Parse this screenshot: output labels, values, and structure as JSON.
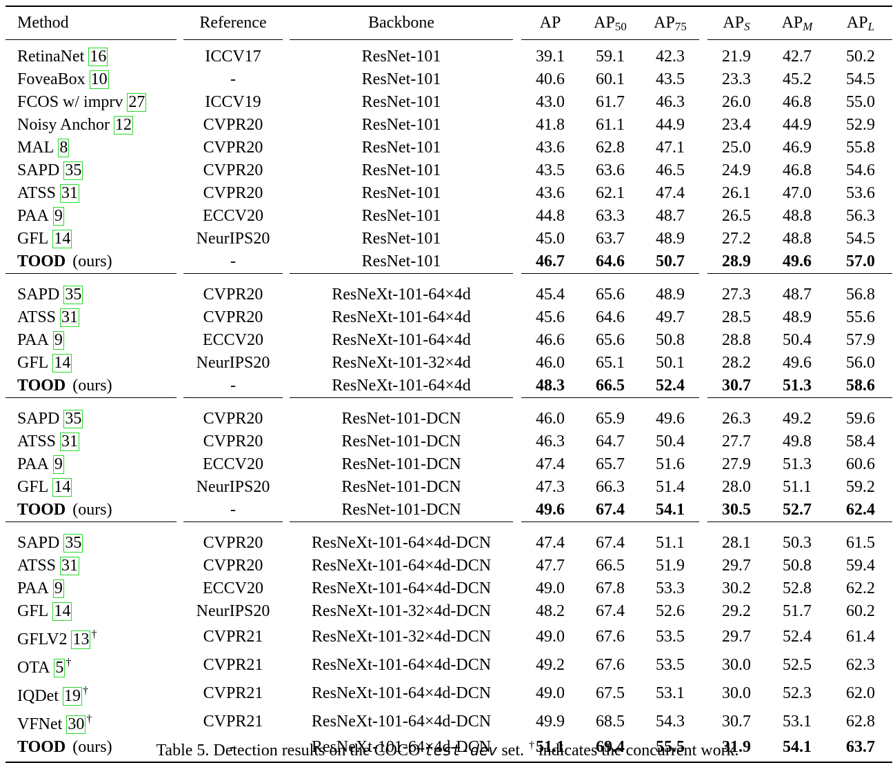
{
  "headers": {
    "method": "Method",
    "reference": "Reference",
    "backbone": "Backbone",
    "ap": "AP",
    "ap50": "50",
    "ap75": "75",
    "aps": "S",
    "apm": "M",
    "apl": "L"
  },
  "ours_label": "(ours)",
  "groups": [
    [
      {
        "method": "RetinaNet",
        "cite": "16",
        "dagger": false,
        "ref": "ICCV17",
        "backbone": "ResNet-101",
        "v": [
          "39.1",
          "59.1",
          "42.3",
          "21.9",
          "42.7",
          "50.2"
        ]
      },
      {
        "method": "FoveaBox",
        "cite": "10",
        "dagger": false,
        "ref": "-",
        "backbone": "ResNet-101",
        "v": [
          "40.6",
          "60.1",
          "43.5",
          "23.3",
          "45.2",
          "54.5"
        ]
      },
      {
        "method": "FCOS w/ imprv",
        "cite": "27",
        "dagger": false,
        "ref": "ICCV19",
        "backbone": "ResNet-101",
        "v": [
          "43.0",
          "61.7",
          "46.3",
          "26.0",
          "46.8",
          "55.0"
        ]
      },
      {
        "method": "Noisy Anchor",
        "cite": "12",
        "dagger": false,
        "ref": "CVPR20",
        "backbone": "ResNet-101",
        "v": [
          "41.8",
          "61.1",
          "44.9",
          "23.4",
          "44.9",
          "52.9"
        ]
      },
      {
        "method": "MAL",
        "cite": "8",
        "dagger": false,
        "ref": "CVPR20",
        "backbone": "ResNet-101",
        "v": [
          "43.6",
          "62.8",
          "47.1",
          "25.0",
          "46.9",
          "55.8"
        ]
      },
      {
        "method": "SAPD",
        "cite": "35",
        "dagger": false,
        "ref": "CVPR20",
        "backbone": "ResNet-101",
        "v": [
          "43.5",
          "63.6",
          "46.5",
          "24.9",
          "46.8",
          "54.6"
        ]
      },
      {
        "method": "ATSS",
        "cite": "31",
        "dagger": false,
        "ref": "CVPR20",
        "backbone": "ResNet-101",
        "v": [
          "43.6",
          "62.1",
          "47.4",
          "26.1",
          "47.0",
          "53.6"
        ]
      },
      {
        "method": "PAA",
        "cite": "9",
        "dagger": false,
        "ref": "ECCV20",
        "backbone": "ResNet-101",
        "v": [
          "44.8",
          "63.3",
          "48.7",
          "26.5",
          "48.8",
          "56.3"
        ]
      },
      {
        "method": "GFL",
        "cite": "14",
        "dagger": false,
        "ref": "NeurIPS20",
        "backbone": "ResNet-101",
        "v": [
          "45.0",
          "63.7",
          "48.9",
          "27.2",
          "48.8",
          "54.5"
        ]
      },
      {
        "method": "TOOD",
        "ours": true,
        "ref": "-",
        "backbone": "ResNet-101",
        "v": [
          "46.7",
          "64.6",
          "50.7",
          "28.9",
          "49.6",
          "57.0"
        ]
      }
    ],
    [
      {
        "method": "SAPD",
        "cite": "35",
        "dagger": false,
        "ref": "CVPR20",
        "backbone": "ResNeXt-101-64×4d",
        "v": [
          "45.4",
          "65.6",
          "48.9",
          "27.3",
          "48.7",
          "56.8"
        ]
      },
      {
        "method": "ATSS",
        "cite": "31",
        "dagger": false,
        "ref": "CVPR20",
        "backbone": "ResNeXt-101-64×4d",
        "v": [
          "45.6",
          "64.6",
          "49.7",
          "28.5",
          "48.9",
          "55.6"
        ]
      },
      {
        "method": "PAA",
        "cite": "9",
        "dagger": false,
        "ref": "ECCV20",
        "backbone": "ResNeXt-101-64×4d",
        "v": [
          "46.6",
          "65.6",
          "50.8",
          "28.8",
          "50.4",
          "57.9"
        ]
      },
      {
        "method": "GFL",
        "cite": "14",
        "dagger": false,
        "ref": "NeurIPS20",
        "backbone": "ResNeXt-101-32×4d",
        "v": [
          "46.0",
          "65.1",
          "50.1",
          "28.2",
          "49.6",
          "56.0"
        ]
      },
      {
        "method": "TOOD",
        "ours": true,
        "ref": "-",
        "backbone": "ResNeXt-101-64×4d",
        "v": [
          "48.3",
          "66.5",
          "52.4",
          "30.7",
          "51.3",
          "58.6"
        ]
      }
    ],
    [
      {
        "method": "SAPD",
        "cite": "35",
        "dagger": false,
        "ref": "CVPR20",
        "backbone": "ResNet-101-DCN",
        "v": [
          "46.0",
          "65.9",
          "49.6",
          "26.3",
          "49.2",
          "59.6"
        ]
      },
      {
        "method": "ATSS",
        "cite": "31",
        "dagger": false,
        "ref": "CVPR20",
        "backbone": "ResNet-101-DCN",
        "v": [
          "46.3",
          "64.7",
          "50.4",
          "27.7",
          "49.8",
          "58.4"
        ]
      },
      {
        "method": "PAA",
        "cite": "9",
        "dagger": false,
        "ref": "ECCV20",
        "backbone": "ResNet-101-DCN",
        "v": [
          "47.4",
          "65.7",
          "51.6",
          "27.9",
          "51.3",
          "60.6"
        ]
      },
      {
        "method": "GFL",
        "cite": "14",
        "dagger": false,
        "ref": "NeurIPS20",
        "backbone": "ResNet-101-DCN",
        "v": [
          "47.3",
          "66.3",
          "51.4",
          "28.0",
          "51.1",
          "59.2"
        ]
      },
      {
        "method": "TOOD",
        "ours": true,
        "ref": "-",
        "backbone": "ResNet-101-DCN",
        "v": [
          "49.6",
          "67.4",
          "54.1",
          "30.5",
          "52.7",
          "62.4"
        ]
      }
    ],
    [
      {
        "method": "SAPD",
        "cite": "35",
        "dagger": false,
        "ref": "CVPR20",
        "backbone": "ResNeXt-101-64×4d-DCN",
        "v": [
          "47.4",
          "67.4",
          "51.1",
          "28.1",
          "50.3",
          "61.5"
        ]
      },
      {
        "method": "ATSS",
        "cite": "31",
        "dagger": false,
        "ref": "CVPR20",
        "backbone": "ResNeXt-101-64×4d-DCN",
        "v": [
          "47.7",
          "66.5",
          "51.9",
          "29.7",
          "50.8",
          "59.4"
        ]
      },
      {
        "method": "PAA",
        "cite": "9",
        "dagger": false,
        "ref": "ECCV20",
        "backbone": "ResNeXt-101-64×4d-DCN",
        "v": [
          "49.0",
          "67.8",
          "53.3",
          "30.2",
          "52.8",
          "62.2"
        ]
      },
      {
        "method": "GFL",
        "cite": "14",
        "dagger": false,
        "ref": "NeurIPS20",
        "backbone": "ResNeXt-101-32×4d-DCN",
        "v": [
          "48.2",
          "67.4",
          "52.6",
          "29.2",
          "51.7",
          "60.2"
        ]
      },
      {
        "method": "GFLV2",
        "cite": "13",
        "dagger": true,
        "ref": "CVPR21",
        "backbone": "ResNeXt-101-32×4d-DCN",
        "v": [
          "49.0",
          "67.6",
          "53.5",
          "29.7",
          "52.4",
          "61.4"
        ]
      },
      {
        "method": "OTA",
        "cite": "5",
        "dagger": true,
        "ref": "CVPR21",
        "backbone": "ResNeXt-101-64×4d-DCN",
        "v": [
          "49.2",
          "67.6",
          "53.5",
          "30.0",
          "52.5",
          "62.3"
        ]
      },
      {
        "method": "IQDet",
        "cite": "19",
        "dagger": true,
        "ref": "CVPR21",
        "backbone": "ResNeXt-101-64×4d-DCN",
        "v": [
          "49.0",
          "67.5",
          "53.1",
          "30.0",
          "52.3",
          "62.0"
        ]
      },
      {
        "method": "VFNet",
        "cite": "30",
        "dagger": true,
        "ref": "CVPR21",
        "backbone": "ResNeXt-101-64×4d-DCN",
        "v": [
          "49.9",
          "68.5",
          "54.3",
          "30.7",
          "53.1",
          "62.8"
        ]
      },
      {
        "method": "TOOD",
        "ours": true,
        "ref": "-",
        "backbone": "ResNeXt-101-64×4d-DCN",
        "v": [
          "51.1",
          "69.4",
          "55.5",
          "31.9",
          "54.1",
          "63.7"
        ]
      }
    ]
  ],
  "caption": {
    "prefix": "Table 5. Detection results on the COCO ",
    "set_name": "test-dev",
    "middle": " set. ",
    "dagger": "†",
    "suffix": " indicates the concurrent work."
  }
}
